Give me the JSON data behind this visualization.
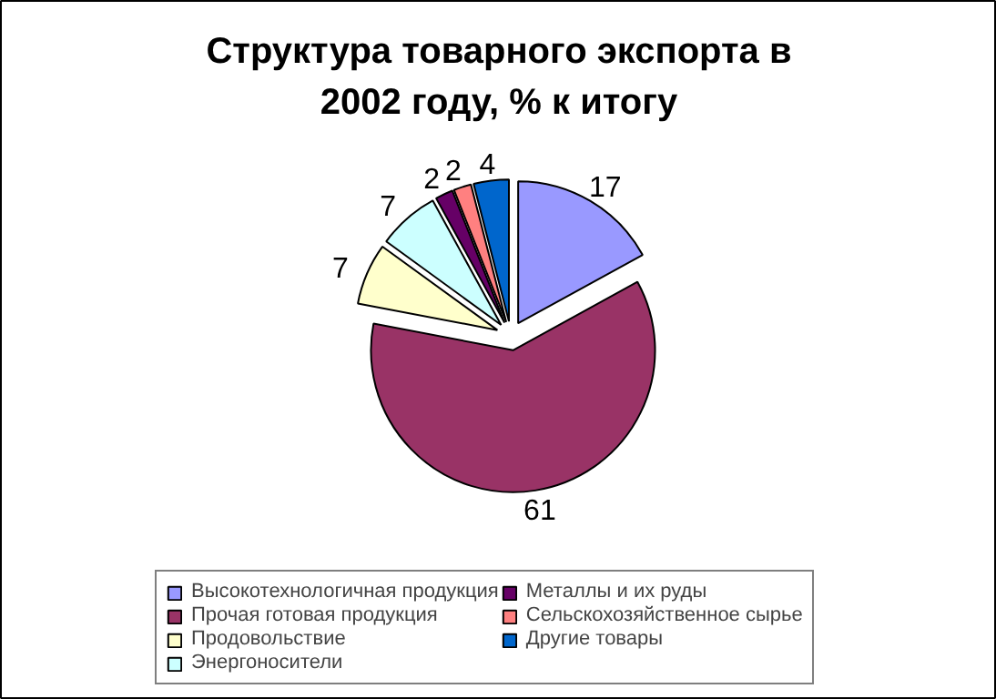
{
  "chart_data": {
    "type": "pie",
    "title": "Структура товарного экспорта в 2002 году, % к итогу",
    "categories": [
      "Высокотехнологичная продукция",
      "Прочая готовая продукция",
      "Продовольствие",
      "Энергоносители",
      "Металлы и их руды",
      "Сельскохозяйственное сырье",
      "Другие товары"
    ],
    "values": [
      17,
      61,
      7,
      7,
      2,
      2,
      4
    ],
    "colors": [
      "#9999ff",
      "#993366",
      "#ffffcc",
      "#ccffff",
      "#660066",
      "#ff8080",
      "#0066cc"
    ],
    "data_labels": true,
    "legend": "bottom"
  }
}
